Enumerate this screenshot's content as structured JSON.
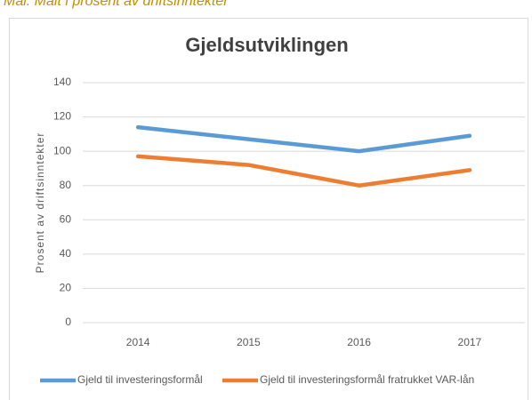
{
  "caption": "Mål: Målt i prosent av driftsinntekter",
  "chart_data": {
    "type": "line",
    "title": "Gjeldsutviklingen",
    "y_label": "Prosent av driftsinntekter",
    "categories": [
      "2014",
      "2015",
      "2016",
      "2017"
    ],
    "series": [
      {
        "name": "Gjeld til investeringsformål",
        "color": "#5b9bd5",
        "values": [
          114,
          107,
          100,
          109
        ]
      },
      {
        "name": "Gjeld til investeringsformål fratrukket VAR-lån",
        "color": "#ed7d31",
        "values": [
          97,
          92,
          80,
          89
        ]
      }
    ],
    "ylim": [
      0,
      140
    ],
    "yticks": [
      0,
      20,
      40,
      60,
      80,
      100,
      120,
      140
    ],
    "grid": true,
    "legend": "bottom"
  }
}
